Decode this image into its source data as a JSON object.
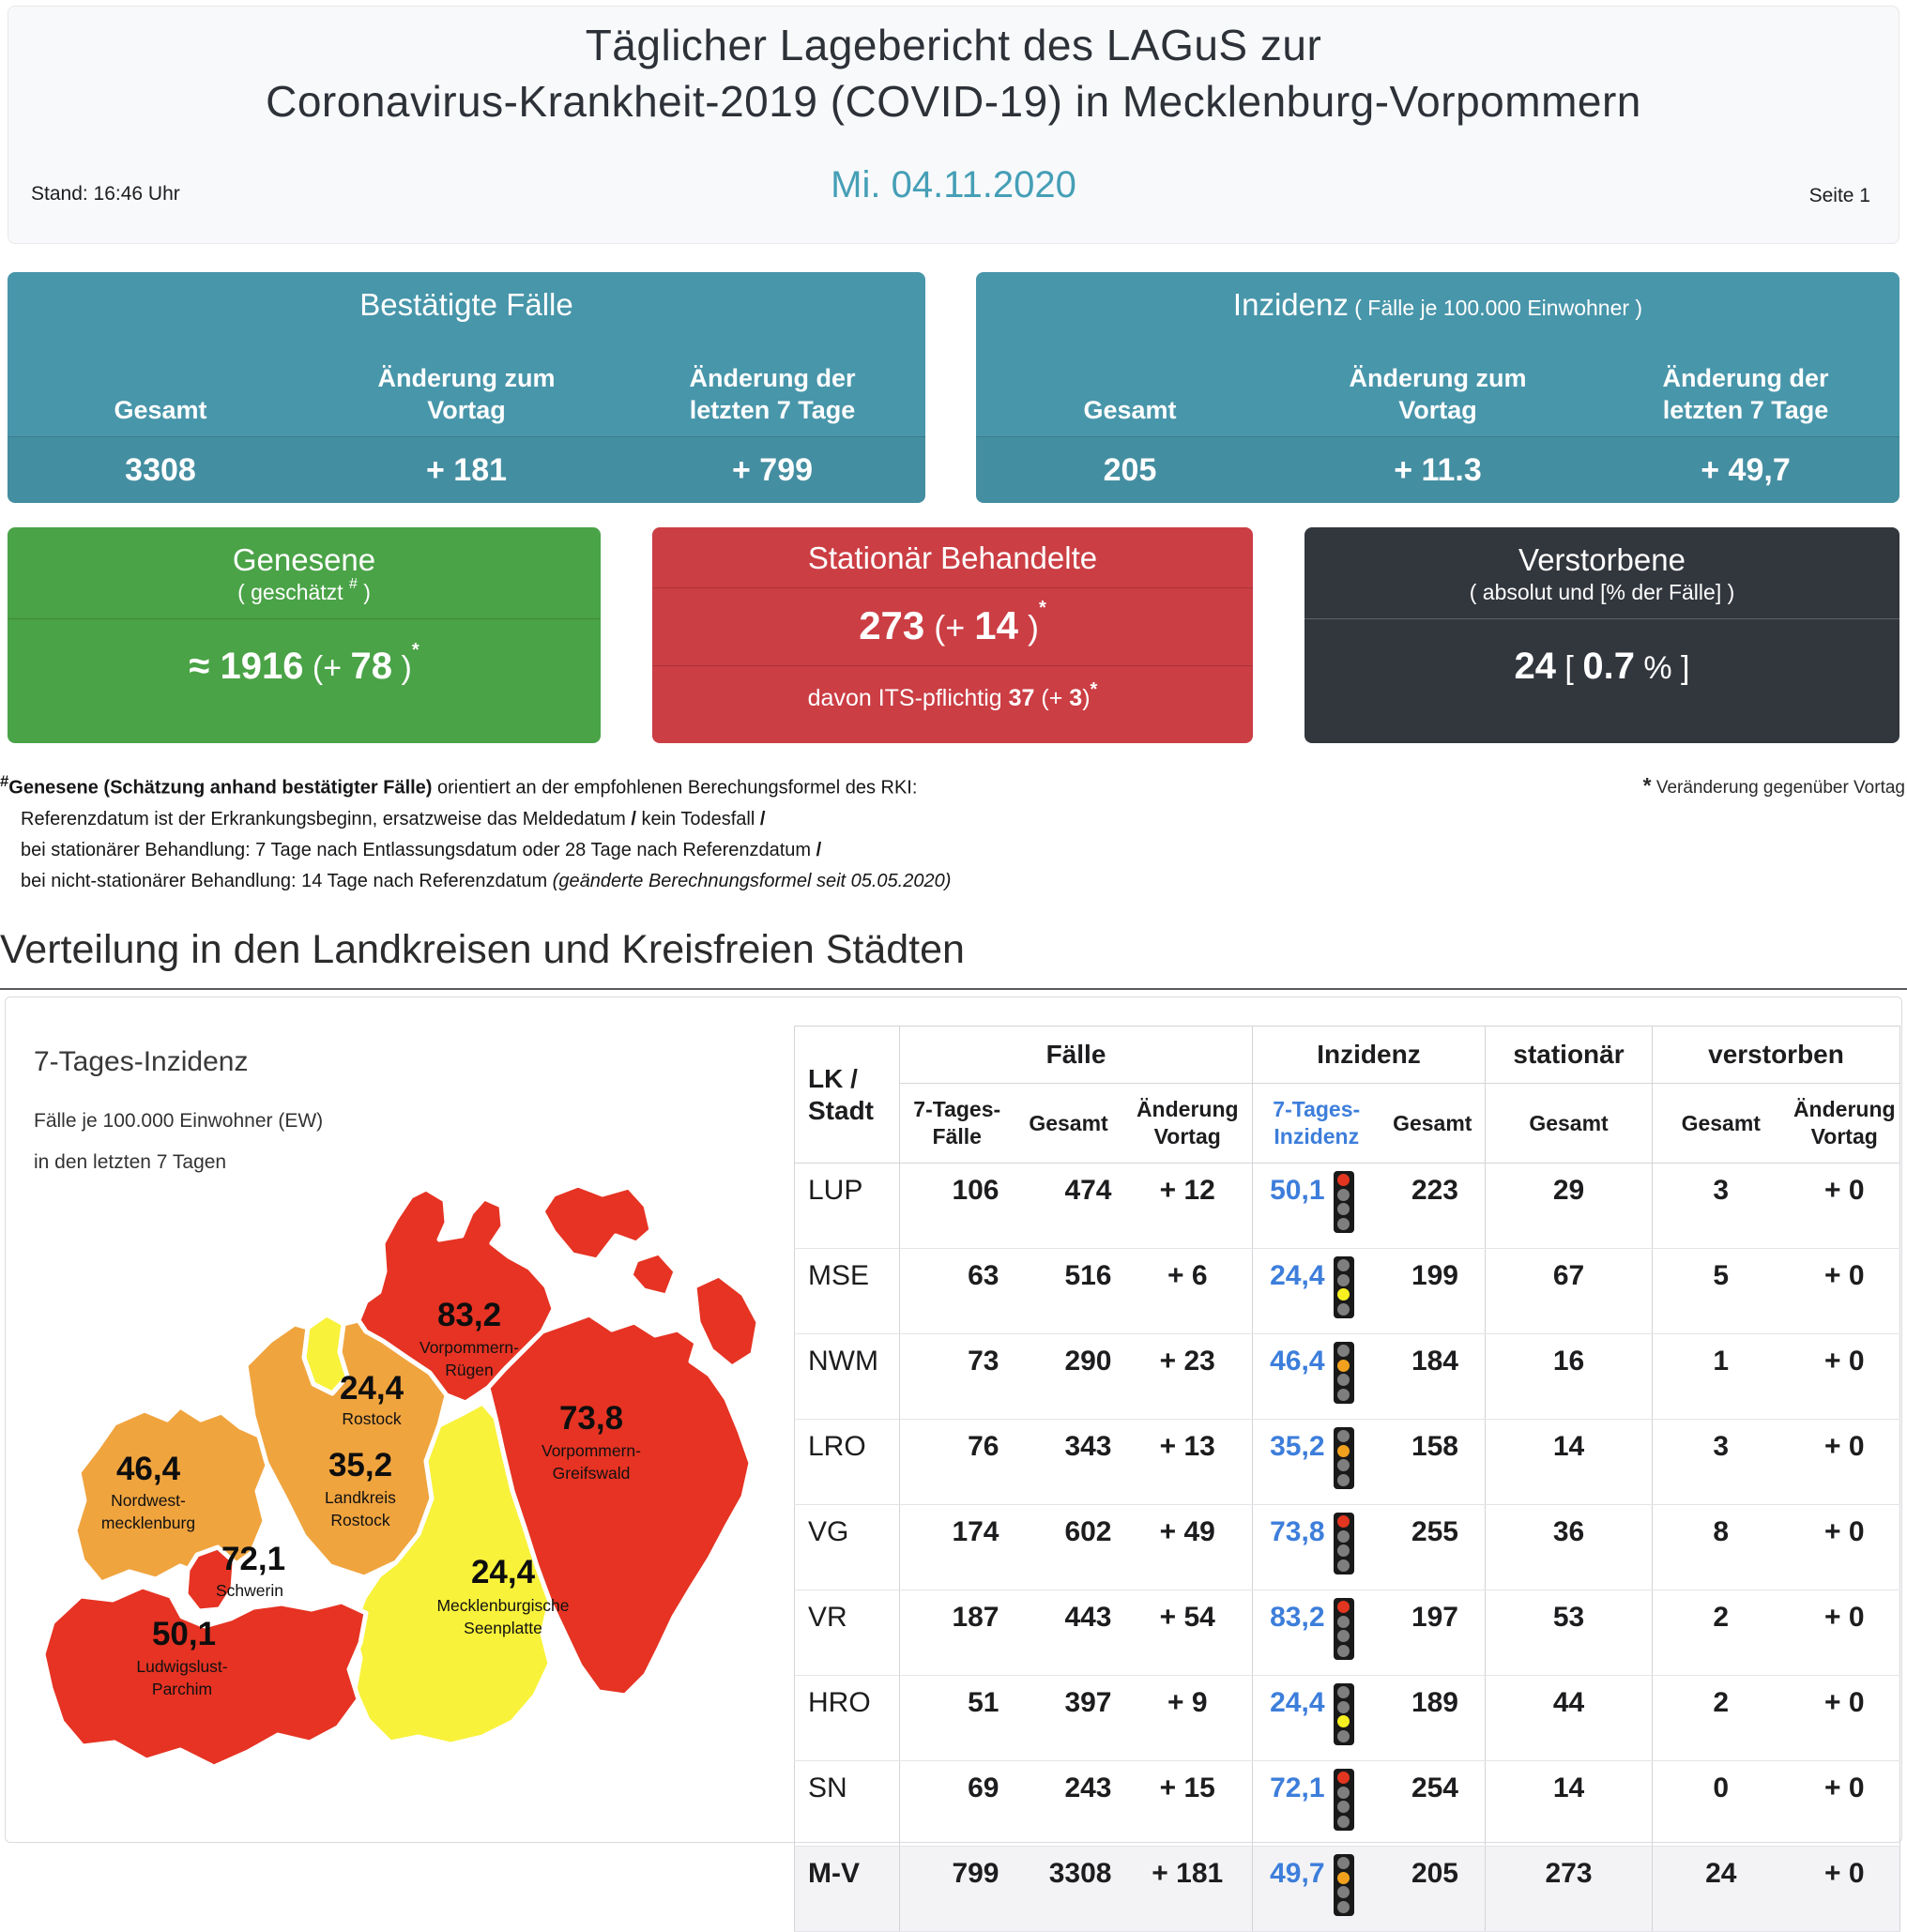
{
  "page": {
    "title_line1": "Täglicher Lagebericht des LAGuS zur",
    "title_line2": "Coronavirus-Krankheit-2019 (COVID-19) in Mecklenburg-Vorpommern",
    "stand": "Stand: 16:46 Uhr",
    "date": "Mi. 04.11.2020",
    "page_label": "Seite 1"
  },
  "cards": {
    "confirmed": {
      "title": "Bestätigte Fälle",
      "columns": [
        {
          "label": "Gesamt",
          "value": "3308"
        },
        {
          "label": "Änderung zum\nVortag",
          "value": "+ 181"
        },
        {
          "label": "Änderung der\nletzten 7 Tage",
          "value": "+ 799"
        }
      ]
    },
    "incidence": {
      "title": "Inzidenz",
      "title_note": " ( Fälle je 100.000 Einwohner )",
      "columns": [
        {
          "label": "Gesamt",
          "value": "205"
        },
        {
          "label": "Änderung zum\nVortag",
          "value": "+ 11.3"
        },
        {
          "label": "Änderung der\nletzten 7 Tage",
          "value": "+ 49,7"
        }
      ]
    },
    "recovered": {
      "title": "Genesene",
      "subtitle_pre": "( geschätzt ",
      "subtitle_sup": "#",
      "subtitle_post": " )",
      "value_main": "≈ 1916",
      "value_mid": " (+ ",
      "value_delta": "78",
      "value_post": " )",
      "value_sup": "*"
    },
    "hospitalized": {
      "title": "Stationär Behandelte",
      "value_main": "273",
      "value_mid": " (+ ",
      "value_delta": "14",
      "value_post": " )",
      "value_sup": "*",
      "sub_pre": "davon ITS-pflichtig ",
      "sub_val": "37",
      "sub_mid": " (+ ",
      "sub_delta": "3",
      "sub_post": ")",
      "sub_sup": "*"
    },
    "deceased": {
      "title": "Verstorbene",
      "subtitle": "( absolut und [% der Fälle] )",
      "value_main": "24",
      "value_mid": " [ ",
      "value_pct": "0.7",
      "value_post": " % ]"
    }
  },
  "footnote": {
    "marker": "#",
    "l1_bold": "Genesene (Schätzung anhand bestätigter Fälle)",
    "l1_rest": " orientiert an der empfohlenen Berechungsformel des RKI:",
    "l2_a": "Referenzdatum ist der Erkrankungsbeginn, ersatzweise das Meldedatum ",
    "l2_s1": "/",
    "l2_b": " kein Todesfall ",
    "l2_s2": "/",
    "l3_a": "bei stationärer Behandlung: 7 Tage nach Entlassungsdatum oder 28 Tage nach Referenzdatum ",
    "l3_s": "/",
    "l4_a": "bei nicht-stationärer Behandlung: 14 Tage nach Referenzdatum ",
    "l4_i": "(geänderte Berechnungsformel seit 05.05.2020)",
    "star": "*",
    "star_text": " Veränderung gegenüber Vortag"
  },
  "section": {
    "title": "Verteilung in den Landkreisen und Kreisfreien Städten"
  },
  "map": {
    "heading": "7-Tages-Inzidenz",
    "sub1": "Fälle je 100.000 Einwohner (EW)",
    "sub2": "in den letzten 7 Tagen",
    "palette": {
      "red": "#e63323",
      "orange": "#f0a43e",
      "yellow": "#f8f23a"
    },
    "regions": [
      {
        "id": "vr",
        "value": "83,2",
        "name": "Vorpommern-\nRügen",
        "level": "red"
      },
      {
        "id": "vg",
        "value": "73,8",
        "name": "Vorpommern-\nGreifswald",
        "level": "red"
      },
      {
        "id": "hro",
        "value": "24,4",
        "name": "Rostock",
        "level": "yellow"
      },
      {
        "id": "lro",
        "value": "35,2",
        "name": "Landkreis\nRostock",
        "level": "orange"
      },
      {
        "id": "nwm",
        "value": "46,4",
        "name": "Nordwest-\nmecklenburg",
        "level": "orange"
      },
      {
        "id": "sn",
        "value": "72,1",
        "name": "Schwerin",
        "level": "red"
      },
      {
        "id": "lup",
        "value": "50,1",
        "name": "Ludwigslust-\nParchim",
        "level": "red"
      },
      {
        "id": "mse",
        "value": "24,4",
        "name": "Mecklenburgische\nSeenplatte",
        "level": "yellow"
      }
    ]
  },
  "table": {
    "lk_header": "LK /\nStadt",
    "groups": [
      {
        "label": "Fälle"
      },
      {
        "label": "Inzidenz"
      },
      {
        "label": "stationär"
      },
      {
        "label": "verstorben"
      }
    ],
    "subheaders": [
      "7-Tages-\nFälle",
      "Gesamt",
      "Änderung\nVortag",
      "7-Tages-\nInzidenz",
      "Gesamt",
      "Gesamt",
      "Gesamt",
      "Änderung\nVortag"
    ],
    "ampel_colors": {
      "red": "#e23620",
      "orange": "#f2a11e",
      "yellow": "#f7f021",
      "off": "#7e7e7e"
    },
    "rows": [
      {
        "id": "LUP",
        "cases7": "106",
        "total": "474",
        "delta": "+ 12",
        "inc7": "50,1",
        "light": "red",
        "inc_total": "223",
        "hosp": "29",
        "dead": "3",
        "dead_delta": "+ 0"
      },
      {
        "id": "MSE",
        "cases7": "63",
        "total": "516",
        "delta": "+ 6",
        "inc7": "24,4",
        "light": "yellow",
        "inc_total": "199",
        "hosp": "67",
        "dead": "5",
        "dead_delta": "+ 0"
      },
      {
        "id": "NWM",
        "cases7": "73",
        "total": "290",
        "delta": "+ 23",
        "inc7": "46,4",
        "light": "orange",
        "inc_total": "184",
        "hosp": "16",
        "dead": "1",
        "dead_delta": "+ 0"
      },
      {
        "id": "LRO",
        "cases7": "76",
        "total": "343",
        "delta": "+ 13",
        "inc7": "35,2",
        "light": "orange",
        "inc_total": "158",
        "hosp": "14",
        "dead": "3",
        "dead_delta": "+ 0"
      },
      {
        "id": "VG",
        "cases7": "174",
        "total": "602",
        "delta": "+ 49",
        "inc7": "73,8",
        "light": "red",
        "inc_total": "255",
        "hosp": "36",
        "dead": "8",
        "dead_delta": "+ 0"
      },
      {
        "id": "VR",
        "cases7": "187",
        "total": "443",
        "delta": "+ 54",
        "inc7": "83,2",
        "light": "red",
        "inc_total": "197",
        "hosp": "53",
        "dead": "2",
        "dead_delta": "+ 0"
      },
      {
        "id": "HRO",
        "cases7": "51",
        "total": "397",
        "delta": "+ 9",
        "inc7": "24,4",
        "light": "yellow",
        "inc_total": "189",
        "hosp": "44",
        "dead": "2",
        "dead_delta": "+ 0"
      },
      {
        "id": "SN",
        "cases7": "69",
        "total": "243",
        "delta": "+ 15",
        "inc7": "72,1",
        "light": "red",
        "inc_total": "254",
        "hosp": "14",
        "dead": "0",
        "dead_delta": "+ 0"
      },
      {
        "id": "M-V",
        "cases7": "799",
        "total": "3308",
        "delta": "+ 181",
        "inc7": "49,7",
        "light": "orange",
        "inc_total": "205",
        "hosp": "273",
        "dead": "24",
        "dead_delta": "+ 0",
        "summary": true
      }
    ]
  },
  "colors": {
    "teal": "#4896aa",
    "green": "#4aa347",
    "card_red": "#cb3e44",
    "dark": "#32363d",
    "date_teal": "#459fb6",
    "link_blue": "#3d7edb"
  }
}
